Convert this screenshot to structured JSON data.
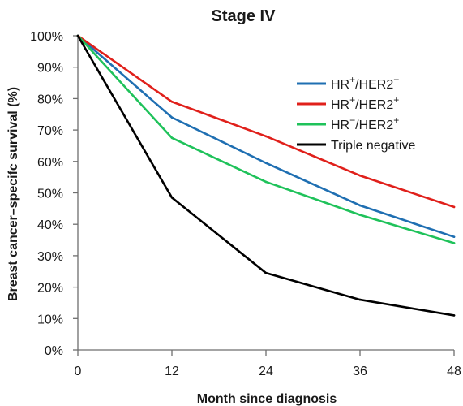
{
  "chart_data": {
    "type": "line",
    "title": "Stage IV",
    "xlabel": "Month since diagnosis",
    "ylabel": "Breast cancer–specifc survival (%)",
    "x": [
      0,
      12,
      24,
      36,
      48
    ],
    "xlim": [
      0,
      48
    ],
    "ylim": [
      0,
      100
    ],
    "x_ticks": [
      "0",
      "12",
      "24",
      "36",
      "48"
    ],
    "y_ticks": [
      "0%",
      "10%",
      "20%",
      "30%",
      "40%",
      "50%",
      "60%",
      "70%",
      "80%",
      "90%",
      "100%"
    ],
    "grid": false,
    "legend_position": "top-right",
    "series": [
      {
        "id": "hr-pos-her2-neg",
        "name": "HR+/HER2−",
        "legend": {
          "base1": "HR",
          "sup1": "+",
          "base2": "/HER2",
          "sup2": "−"
        },
        "color": "#1f6fb2",
        "values": [
          100,
          74,
          59.5,
          46,
          36
        ]
      },
      {
        "id": "hr-pos-her2-pos",
        "name": "HR+/HER2+",
        "legend": {
          "base1": "HR",
          "sup1": "+",
          "base2": "/HER2",
          "sup2": "+"
        },
        "color": "#e0201b",
        "values": [
          100,
          79,
          68,
          55.5,
          45.5
        ]
      },
      {
        "id": "hr-neg-her2-pos",
        "name": "HR−/HER2+",
        "legend": {
          "base1": "HR",
          "sup1": "−",
          "base2": "/HER2",
          "sup2": "+"
        },
        "color": "#1fc25a",
        "values": [
          100,
          67.5,
          53.5,
          43,
          34
        ]
      },
      {
        "id": "triple-negative",
        "name": "Triple negative",
        "legend": {
          "base1": "Triple negative",
          "sup1": "",
          "base2": "",
          "sup2": ""
        },
        "color": "#000000",
        "values": [
          100,
          48.5,
          24.5,
          16,
          11
        ]
      }
    ]
  }
}
